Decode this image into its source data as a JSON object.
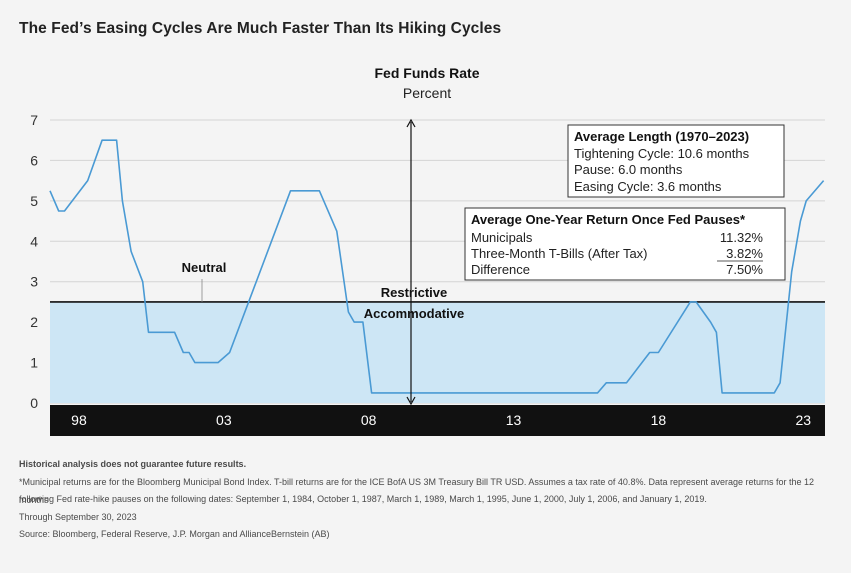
{
  "title": "The Fed’s Easing Cycles Are Much Faster Than Its Hiking Cycles",
  "chart_data": {
    "type": "line",
    "title": "Fed Funds Rate",
    "subtitle": "Percent",
    "ylim": [
      0,
      7
    ],
    "yticks": [
      "0",
      "1",
      "2",
      "3",
      "4",
      "5",
      "6",
      "7"
    ],
    "xlim": [
      1997.0,
      2023.75
    ],
    "xticks": [
      {
        "year": 1998,
        "label": "98"
      },
      {
        "year": 2003,
        "label": "03"
      },
      {
        "year": 2008,
        "label": "08"
      },
      {
        "year": 2013,
        "label": "13"
      },
      {
        "year": 2018,
        "label": "18"
      },
      {
        "year": 2023,
        "label": "23"
      }
    ],
    "neutral_rate": 2.5,
    "labels": {
      "neutral": "Neutral",
      "restrictive": "Restrictive",
      "accommodative": "Accommodative"
    },
    "series": [
      {
        "values": [
          [
            1997.0,
            5.25
          ],
          [
            1997.3,
            4.75
          ],
          [
            1997.5,
            4.75
          ],
          [
            1998.3,
            5.5
          ],
          [
            1998.8,
            6.5
          ],
          [
            1999.3,
            6.5
          ],
          [
            1999.5,
            5.0
          ],
          [
            1999.8,
            3.75
          ],
          [
            2000.2,
            3.0
          ],
          [
            2000.4,
            1.75
          ],
          [
            2001.2,
            1.75
          ],
          [
            2001.3,
            1.75
          ],
          [
            2001.6,
            1.25
          ],
          [
            2001.8,
            1.25
          ],
          [
            2002.0,
            1.0
          ],
          [
            2002.8,
            1.0
          ],
          [
            2003.2,
            1.25
          ],
          [
            2005.3,
            5.25
          ],
          [
            2006.3,
            5.25
          ],
          [
            2006.9,
            4.25
          ],
          [
            2007.3,
            2.25
          ],
          [
            2007.5,
            2.0
          ],
          [
            2007.8,
            2.0
          ],
          [
            2008.1,
            0.25
          ],
          [
            2015.9,
            0.25
          ],
          [
            2016.2,
            0.5
          ],
          [
            2016.9,
            0.5
          ],
          [
            2017.7,
            1.25
          ],
          [
            2018.0,
            1.25
          ],
          [
            2019.1,
            2.5
          ],
          [
            2019.3,
            2.5
          ],
          [
            2019.8,
            2.0
          ],
          [
            2020.0,
            1.75
          ],
          [
            2020.2,
            0.25
          ],
          [
            2022.0,
            0.25
          ],
          [
            2022.2,
            0.5
          ],
          [
            2022.6,
            3.25
          ],
          [
            2022.9,
            4.5
          ],
          [
            2023.1,
            5.0
          ],
          [
            2023.7,
            5.5
          ]
        ]
      }
    ],
    "colors": {
      "line": "#4a9ad4",
      "accommodative_fill": "#cde6f5",
      "axis_band": "#111111"
    },
    "annotations": {
      "average_length": {
        "heading": "Average Length (1970–2023)",
        "lines": [
          "Tightening Cycle: 10.6 months",
          "Pause: 6.0 months",
          "Easing Cycle: 3.6 months"
        ]
      },
      "average_return": {
        "heading": "Average One-Year Return Once Fed Pauses*",
        "rows": [
          {
            "label": "Municipals",
            "value": "11.32%"
          },
          {
            "label": "Three-Month T-Bills (After Tax)",
            "value": "3.82%"
          },
          {
            "label": "Difference",
            "value": "7.50%"
          }
        ]
      }
    }
  },
  "footnotes": {
    "disclaimer": "Historical analysis does not guarantee future results.",
    "note_1": "*Municipal returns are for the Bloomberg Municipal Bond Index. T-bill returns are for the ICE BofA US 3M Treasury Bill TR USD. Assumes a tax rate of 40.8%. Data represent average returns for the 12 months",
    "note_2": "following Fed rate-hike pauses on the following dates: September 1, 1984, October 1, 1987, March 1, 1989, March 1, 1995, June 1, 2000, July 1, 2006, and January 1, 2019.",
    "through": "Through September 30, 2023",
    "source": "Source: Bloomberg, Federal Reserve, J.P. Morgan and AllianceBernstein (AB)"
  }
}
